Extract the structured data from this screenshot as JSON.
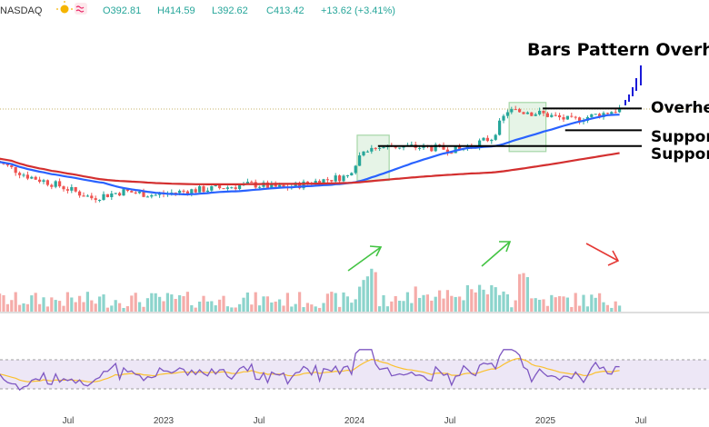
{
  "header": {
    "exchange": "NASDAQ",
    "open": "O392.81",
    "high": "H414.59",
    "low": "L392.62",
    "close": "C413.42",
    "change": "+13.62 (+3.41%)"
  },
  "colors": {
    "up": "#26a69a",
    "down": "#ef5350",
    "ma50": "#2962ff",
    "ma200": "#d32f2f",
    "annotation": "#1a1ad8",
    "rsi_line": "#7e57c2",
    "rsi_signal": "#fbc02d",
    "rsi_band": "#ede7f6",
    "box": "#a5d6a7",
    "arrow_green": "#43c443",
    "arrow_red": "#e53935"
  },
  "annotations": {
    "title": "Bars Pattern Overhe",
    "overhead": "Overhe",
    "support1": "Suppor",
    "support2": "Suppor"
  },
  "chart_data": {
    "type": "candlestick",
    "x_ticks": [
      "Jul",
      "2023",
      "Jul",
      "2024",
      "Jul",
      "2025",
      "Jul"
    ],
    "levels": {
      "overhead": 414,
      "support_upper": 374,
      "support_lower": 345
    },
    "price_anchors": [
      {
        "t": "2022-03",
        "price": 318
      },
      {
        "t": "2022-05",
        "price": 290
      },
      {
        "t": "2022-07",
        "price": 272
      },
      {
        "t": "2022-09",
        "price": 250
      },
      {
        "t": "2022-11",
        "price": 262
      },
      {
        "t": "2023-01",
        "price": 255
      },
      {
        "t": "2023-03",
        "price": 263
      },
      {
        "t": "2023-05",
        "price": 268
      },
      {
        "t": "2023-07",
        "price": 275
      },
      {
        "t": "2023-09",
        "price": 268
      },
      {
        "t": "2023-11",
        "price": 280
      },
      {
        "t": "2024-01",
        "price": 290
      },
      {
        "t": "2024-02",
        "price": 340
      },
      {
        "t": "2024-04",
        "price": 345
      },
      {
        "t": "2024-06",
        "price": 342
      },
      {
        "t": "2024-08",
        "price": 338
      },
      {
        "t": "2024-10",
        "price": 360
      },
      {
        "t": "2024-11",
        "price": 410
      },
      {
        "t": "2025-01",
        "price": 405
      },
      {
        "t": "2025-03",
        "price": 392
      },
      {
        "t": "2025-05",
        "price": 405
      },
      {
        "t": "2025-06",
        "price": 413
      }
    ],
    "rsi_levels": {
      "upper": 70,
      "lower": 30
    }
  }
}
